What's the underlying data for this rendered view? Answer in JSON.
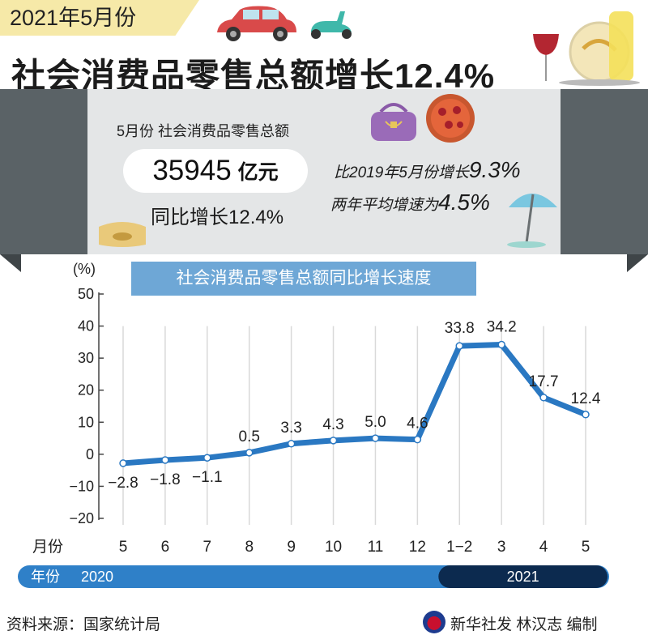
{
  "header": {
    "date_tag": "2021年5月份",
    "headline": "社会消费品零售总额增长12.4%"
  },
  "summary": {
    "may_label": "5月份 社会消费品零售总额",
    "total_value": "35945",
    "total_unit": "亿元",
    "yoy_text": "同比增长12.4%",
    "vs2019_prefix": "比2019年5月份增长",
    "vs2019_value": "9.3%",
    "avg2y_prefix": "两年平均增速为",
    "avg2y_value": "4.5%"
  },
  "footer": {
    "source": "资料来源：国家统计局",
    "credit": "新华社发  林汉志  编制"
  },
  "colors": {
    "line": "#2a78c2",
    "title_bar": "#6ea7d6",
    "year_2020": "#2f80c8",
    "year_2021": "#0c2a4f"
  },
  "chart_data": {
    "type": "line",
    "title": "社会消费品零售总额同比增长速度",
    "ylabel": "(%)",
    "xlabel": "月份",
    "ylim": [
      -20,
      50
    ],
    "yticks": [
      50,
      40,
      30,
      20,
      10,
      0,
      -10,
      -20
    ],
    "ytick_labels": [
      "50",
      "40",
      "30",
      "20",
      "10",
      "0",
      "−10",
      "−20"
    ],
    "categories": [
      "5",
      "6",
      "7",
      "8",
      "9",
      "10",
      "11",
      "12",
      "1−2",
      "3",
      "4",
      "5"
    ],
    "values": [
      -2.8,
      -1.8,
      -1.1,
      0.5,
      3.3,
      4.3,
      5.0,
      4.6,
      33.8,
      34.2,
      17.7,
      12.4
    ],
    "data_labels": [
      "−2.8",
      "−1.8",
      "−1.1",
      "0.5",
      "3.3",
      "4.3",
      "5.0",
      "4.6",
      "33.8",
      "34.2",
      "17.7",
      "12.4"
    ],
    "year_axis_label": "年份",
    "years": [
      {
        "label": "2020",
        "start_index": 0,
        "end_index": 7
      },
      {
        "label": "2021",
        "start_index": 8,
        "end_index": 11
      }
    ],
    "grid": "vertical"
  }
}
